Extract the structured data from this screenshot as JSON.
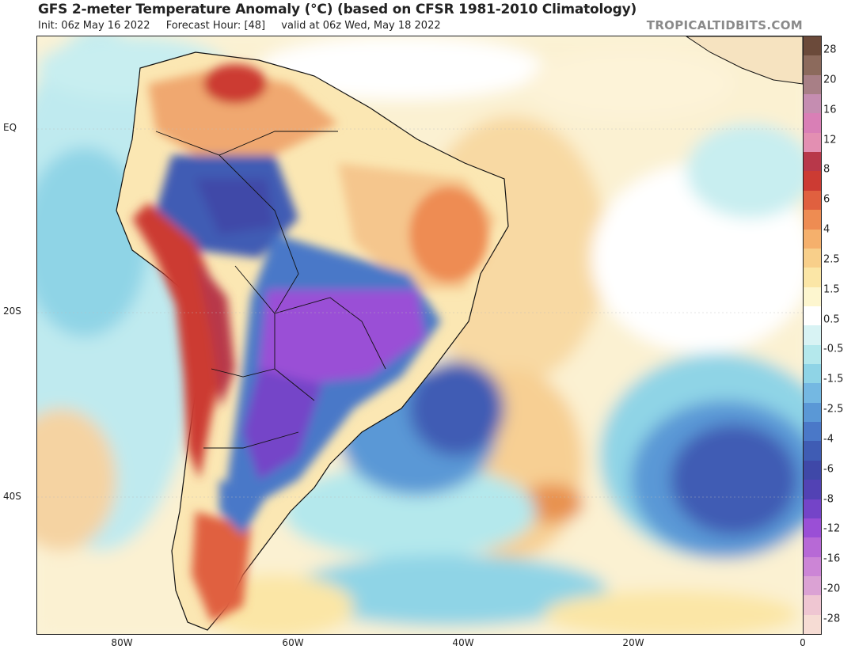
{
  "header": {
    "title": "GFS 2-meter Temperature Anomaly (°C) (based on CFSR 1981-2010 Climatology)",
    "init": "Init: 06z May 16 2022",
    "forecast_hour": "Forecast Hour: [48]",
    "valid": "valid at 06z Wed, May 18 2022",
    "watermark": "TROPICALTIDBITS.COM"
  },
  "map": {
    "region": "South America and South Atlantic",
    "lat_labels": [
      "EQ",
      "20S",
      "40S"
    ],
    "lon_labels": [
      "80W",
      "60W",
      "40W",
      "20W",
      "0"
    ]
  },
  "colorbar": {
    "labels": [
      "28",
      "20",
      "16",
      "12",
      "8",
      "6",
      "4",
      "2.5",
      "1.5",
      "0.5",
      "-0.5",
      "-1.5",
      "-2.5",
      "-4",
      "-6",
      "-8",
      "-12",
      "-16",
      "-20",
      "-28"
    ],
    "colors": [
      "#6b4a3a",
      "#8c6a5c",
      "#a87f86",
      "#c58db1",
      "#d97fb6",
      "#e38fb2",
      "#b8384a",
      "#cc3b33",
      "#e0603f",
      "#ee8c52",
      "#f5b06c",
      "#f8cf8a",
      "#fbe6a6",
      "#fdf6cf",
      "#ffffff",
      "#d8f3f4",
      "#b4e8ec",
      "#8fd4e6",
      "#74b8e2",
      "#5a98d6",
      "#4a78c8",
      "#3f5cb4",
      "#3f48a8",
      "#5242b4",
      "#7444c8",
      "#9a4fd6",
      "#b769d6",
      "#cc85d6",
      "#dba2d4",
      "#efc6d2",
      "#f6dcd4"
    ]
  }
}
